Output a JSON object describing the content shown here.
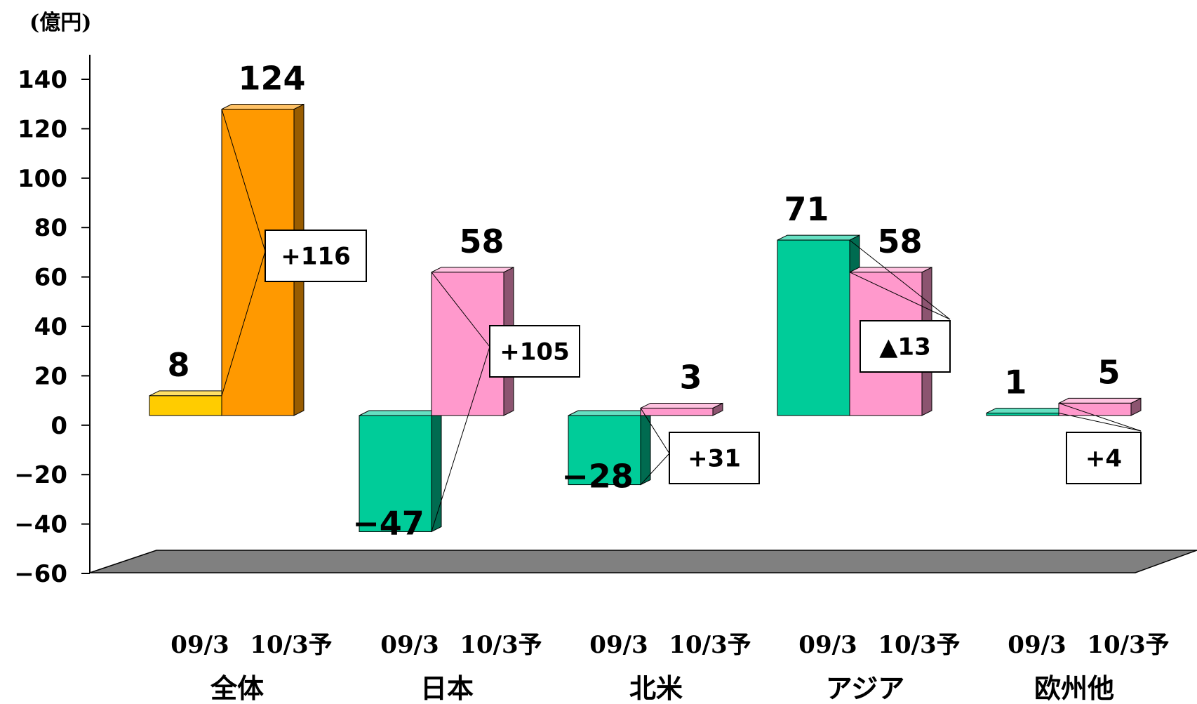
{
  "chart_data": {
    "type": "bar",
    "ylabel": "(億円)",
    "ylim": [
      -60,
      140
    ],
    "yticks": [
      140,
      120,
      100,
      80,
      60,
      40,
      20,
      0,
      -20,
      -40,
      -60
    ],
    "ytick_labels": [
      "140",
      "120",
      "100",
      "80",
      "60",
      "40",
      "20",
      "0",
      "−20",
      "−40",
      "−60"
    ],
    "period_labels": [
      "09/3",
      "10/3予"
    ],
    "groups": [
      {
        "name": "全体",
        "bars": [
          {
            "period": "09/3",
            "value": 8,
            "label": "8",
            "color": "#FFCC00",
            "side": "#B28E00",
            "top": "#FFE066"
          },
          {
            "period": "10/3予",
            "value": 124,
            "label": "124",
            "color": "#FF9900",
            "side": "#995C00",
            "top": "#FFC266"
          }
        ],
        "diff": "+116"
      },
      {
        "name": "日本",
        "bars": [
          {
            "period": "09/3",
            "value": -47,
            "label": "−47",
            "color": "#00CC99",
            "side": "#006B50",
            "top": "#66E0C2"
          },
          {
            "period": "10/3予",
            "value": 58,
            "label": "58",
            "color": "#FF99CC",
            "side": "#8C5470",
            "top": "#FFC2E0"
          }
        ],
        "diff": "+105"
      },
      {
        "name": "北米",
        "bars": [
          {
            "period": "09/3",
            "value": -28,
            "label": "−28",
            "color": "#00CC99",
            "side": "#006B50",
            "top": "#66E0C2"
          },
          {
            "period": "10/3予",
            "value": 3,
            "label": "3",
            "color": "#FF99CC",
            "side": "#8C5470",
            "top": "#FFC2E0"
          }
        ],
        "diff": "+31"
      },
      {
        "name": "アジア",
        "bars": [
          {
            "period": "09/3",
            "value": 71,
            "label": "71",
            "color": "#00CC99",
            "side": "#006B50",
            "top": "#66E0C2"
          },
          {
            "period": "10/3予",
            "value": 58,
            "label": "58",
            "color": "#FF99CC",
            "side": "#8C5470",
            "top": "#FFC2E0"
          }
        ],
        "diff": "▲13"
      },
      {
        "name": "欧州他",
        "bars": [
          {
            "period": "09/3",
            "value": 1,
            "label": "1",
            "color": "#00CC99",
            "side": "#006B50",
            "top": "#66E0C2"
          },
          {
            "period": "10/3予",
            "value": 5,
            "label": "5",
            "color": "#FF99CC",
            "side": "#8C5470",
            "top": "#FFC2E0"
          }
        ],
        "diff": "+4"
      }
    ],
    "floor_color": "#808080",
    "grid": false,
    "legend": "none"
  }
}
